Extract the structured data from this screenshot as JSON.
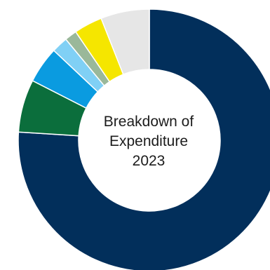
{
  "chart_data": {
    "type": "pie",
    "donut": true,
    "title_lines": [
      "Breakdown of",
      "Expenditure",
      "2023"
    ],
    "slices": [
      {
        "value": 76.0,
        "color": "#022f5b"
      },
      {
        "value": 6.5,
        "color": "#0b6e3c"
      },
      {
        "value": 4.5,
        "color": "#0a9be0"
      },
      {
        "value": 2.0,
        "color": "#80d0f5"
      },
      {
        "value": 1.5,
        "color": "#9ab89a"
      },
      {
        "value": 3.5,
        "color": "#f5e600"
      },
      {
        "value": 6.0,
        "color": "#e6e6e6"
      }
    ]
  }
}
